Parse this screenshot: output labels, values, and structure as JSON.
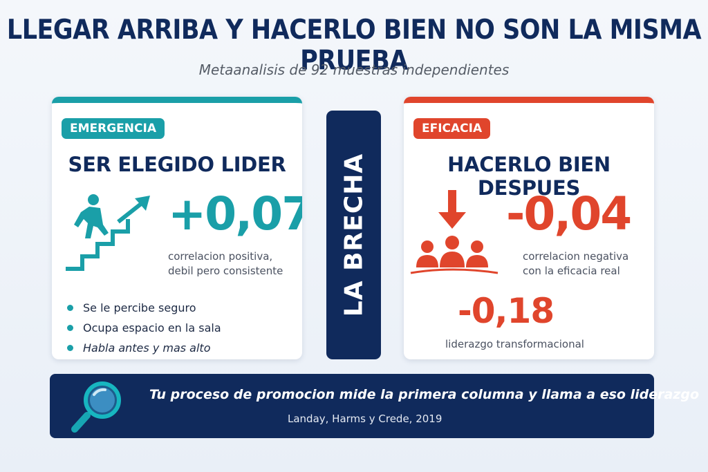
{
  "header": {
    "title": "LLEGAR ARRIBA Y HACERLO BIEN NO SON LA MISMA PRUEBA",
    "subtitle": "Metaanalisis de 92 muestras independientes"
  },
  "emergence": {
    "tag": "EMERGENCIA",
    "heading": "SER ELEGIDO LIDER",
    "value": "+0,07",
    "desc_line1": "correlacion positiva,",
    "desc_line2": "debil pero consistente",
    "bullets": [
      "Se le percibe seguro",
      "Ocupa espacio en la sala",
      "Habla antes y mas alto"
    ],
    "icon": "stairs-climb-icon",
    "accent": "#1a9fa8"
  },
  "gap": {
    "label": "LA BRECHA",
    "color": "#102a5c"
  },
  "efficacy": {
    "tag": "EFICACIA",
    "heading": "HACERLO BIEN DESPUES",
    "value": "-0,04",
    "desc_line1": "correlacion negativa",
    "desc_line2": "con la eficacia real",
    "value2": "-0,18",
    "value2_desc": "liderazgo transformacional",
    "icon": "team-down-arrow-icon",
    "accent": "#e0452c"
  },
  "banner": {
    "quote": "Tu proceso de promocion mide la primera columna y llama a eso liderazgo",
    "citation": "Landay, Harms y Crede, 2019",
    "icon": "magnifier-icon"
  }
}
